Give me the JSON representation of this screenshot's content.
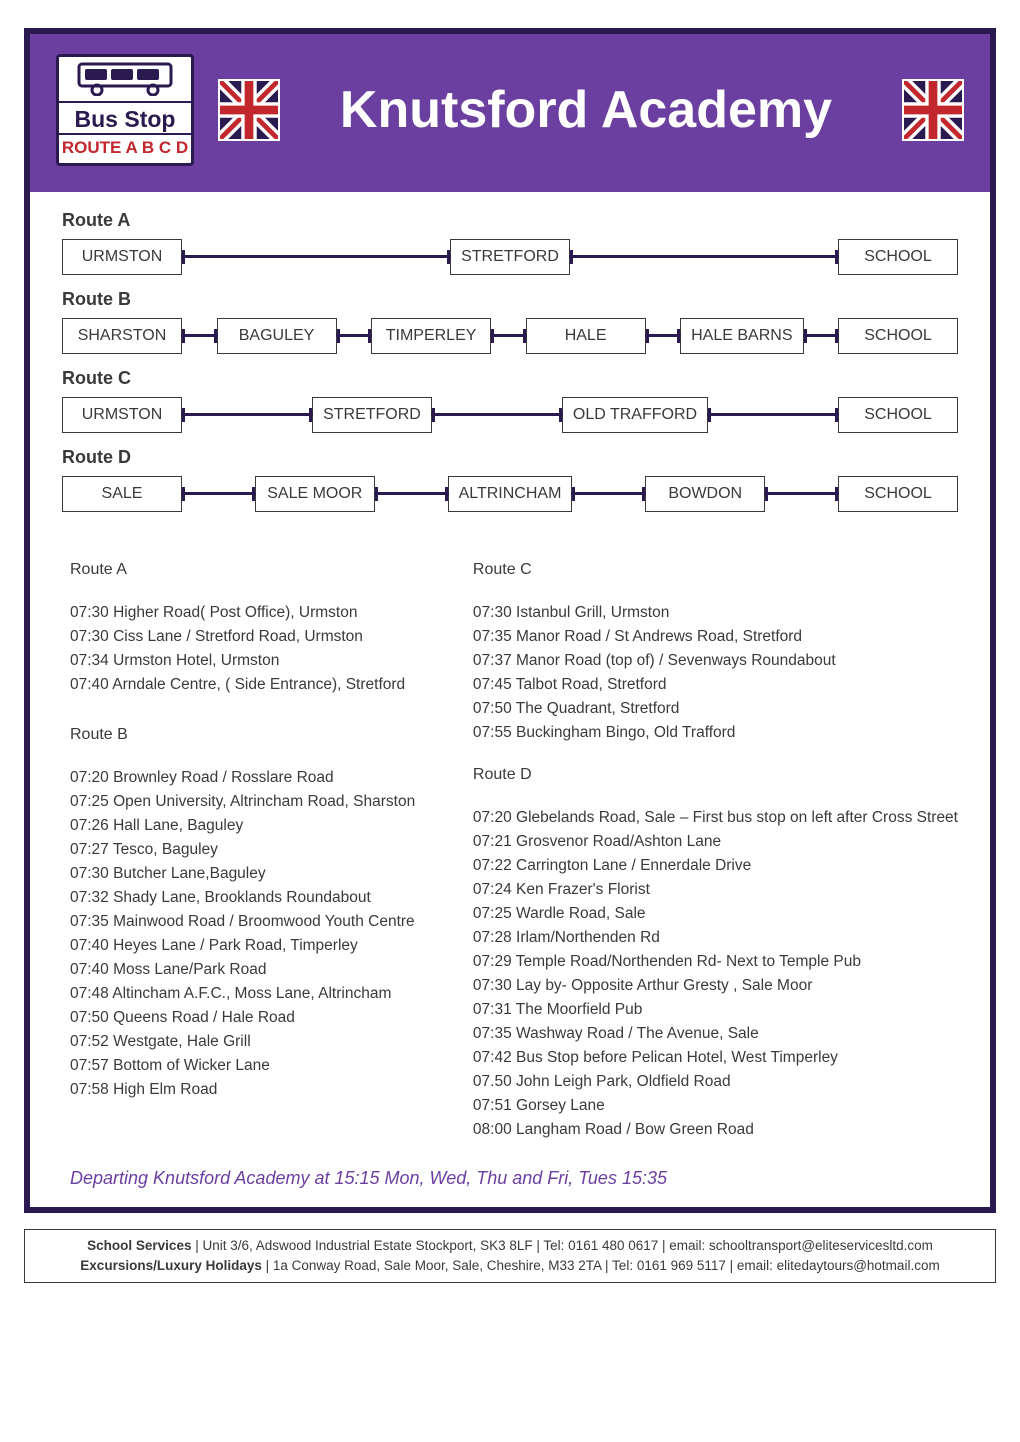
{
  "header": {
    "bus_stop_label": "Bus Stop",
    "routes_label": "ROUTE A B C D",
    "title": "Knutsford Academy",
    "flag_colors": {
      "blue": "#2b1a4f",
      "red": "#c1272d",
      "white": "#ffffff"
    },
    "bg_color": "#6b3fa0"
  },
  "routes": [
    {
      "name": "Route A",
      "stops": [
        "URMSTON",
        "STRETFORD",
        "SCHOOL"
      ]
    },
    {
      "name": "Route B",
      "stops": [
        "SHARSTON",
        "BAGULEY",
        "TIMPERLEY",
        "HALE",
        "HALE BARNS",
        "SCHOOL"
      ]
    },
    {
      "name": "Route C",
      "stops": [
        "URMSTON",
        "STRETFORD",
        "OLD TRAFFORD",
        "SCHOOL"
      ]
    },
    {
      "name": "Route D",
      "stops": [
        "SALE",
        "SALE MOOR",
        "ALTRINCHAM",
        "BOWDON",
        "SCHOOL"
      ]
    }
  ],
  "timetable": {
    "A": {
      "title": "Route A",
      "rows": [
        "07:30 Higher Road( Post Office), Urmston",
        "07:30 Ciss Lane / Stretford Road, Urmston",
        "07:34 Urmston Hotel, Urmston",
        "07:40 Arndale Centre, ( Side Entrance), Stretford"
      ]
    },
    "B": {
      "title": "Route B",
      "rows": [
        "07:20 Brownley Road / Rosslare Road",
        "07:25 Open University, Altrincham Road, Sharston",
        "07:26 Hall Lane, Baguley",
        "07:27 Tesco, Baguley",
        "07:30 Butcher Lane,Baguley",
        "07:32 Shady Lane, Brooklands Roundabout",
        "07:35 Mainwood Road / Broomwood Youth Centre",
        "07:40 Heyes Lane / Park Road, Timperley",
        "07:40 Moss Lane/Park Road",
        "07:48 Altincham A.F.C., Moss Lane, Altrincham",
        "07:50 Queens Road / Hale Road",
        "07:52 Westgate, Hale Grill",
        "07:57 Bottom of Wicker Lane",
        "07:58 High Elm Road"
      ]
    },
    "C": {
      "title": "Route C",
      "rows": [
        "07:30 Istanbul Grill, Urmston",
        "07:35 Manor Road / St Andrews Road, Stretford",
        "07:37 Manor Road (top of) / Sevenways Roundabout",
        "07:45 Talbot Road, Stretford",
        "07:50 The Quadrant, Stretford",
        "07:55 Buckingham Bingo, Old Trafford"
      ]
    },
    "D": {
      "title": "Route D",
      "rows": [
        "07:20 Glebelands Road, Sale – First bus stop on left after Cross Street",
        "07:21 Grosvenor Road/Ashton Lane",
        "07:22 Carrington Lane / Ennerdale Drive",
        "07:24 Ken Frazer's Florist",
        "07:25 Wardle Road, Sale",
        "07:28 Irlam/Northenden Rd",
        "07:29 Temple Road/Northenden Rd- Next to Temple Pub",
        "07:30 Lay by- Opposite Arthur Gresty , Sale Moor",
        "07:31 The Moorfield Pub",
        "07:35 Washway Road / The Avenue, Sale",
        "07:42 Bus Stop before Pelican Hotel, West Timperley",
        "07.50 John Leigh Park, Oldfield Road",
        "07:51 Gorsey Lane",
        "08:00 Langham Road / Bow Green Road"
      ]
    }
  },
  "departing": "Departing Knutsford Academy at 15:15 Mon, Wed, Thu and Fri, Tues 15:35",
  "footer": {
    "line1_strong": "School  Services",
    "line1_rest": "   |   Unit 3/6, Adswood Industrial Estate Stockport, SK3 8LF   |   Tel: 0161 480 0617   |   email: schooltransport@eliteservicesltd.com",
    "line2_strong": "Excursions/Luxury Holidays",
    "line2_rest": "  |  1a Conway Road, Sale Moor, Sale, Cheshire, M33 2TA  |  Tel: 0161 969 5117  |  email: elitedaytours@hotmail.com"
  }
}
